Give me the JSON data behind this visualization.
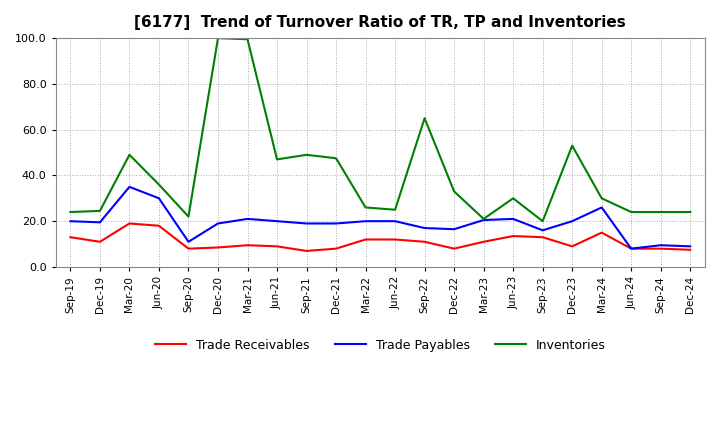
{
  "title": "[6177]  Trend of Turnover Ratio of TR, TP and Inventories",
  "x_labels": [
    "Sep-19",
    "Dec-19",
    "Mar-20",
    "Jun-20",
    "Sep-20",
    "Dec-20",
    "Mar-21",
    "Jun-21",
    "Sep-21",
    "Dec-21",
    "Mar-22",
    "Jun-22",
    "Sep-22",
    "Dec-22",
    "Mar-23",
    "Jun-23",
    "Sep-23",
    "Dec-23",
    "Mar-24",
    "Jun-24",
    "Sep-24",
    "Dec-24"
  ],
  "trade_receivables": [
    13.0,
    11.0,
    19.0,
    18.0,
    8.0,
    8.5,
    9.5,
    9.0,
    7.0,
    8.0,
    12.0,
    12.0,
    11.0,
    8.0,
    11.0,
    13.5,
    13.0,
    9.0,
    15.0,
    8.0,
    8.0,
    7.5
  ],
  "trade_payables": [
    20.0,
    19.5,
    35.0,
    30.0,
    11.0,
    19.0,
    21.0,
    20.0,
    19.0,
    19.0,
    20.0,
    20.0,
    17.0,
    16.5,
    20.5,
    21.0,
    16.0,
    20.0,
    26.0,
    8.0,
    9.5,
    9.0
  ],
  "inventories": [
    24.0,
    24.5,
    49.0,
    36.0,
    22.0,
    100.0,
    99.5,
    47.0,
    49.0,
    47.5,
    26.0,
    25.0,
    65.0,
    33.0,
    21.0,
    30.0,
    20.0,
    53.0,
    30.0,
    24.0,
    24.0,
    24.0
  ],
  "tr_color": "#ff0000",
  "tp_color": "#0000ff",
  "inv_color": "#008000",
  "ylim": [
    0.0,
    100.0
  ],
  "yticks": [
    0.0,
    20.0,
    40.0,
    60.0,
    80.0,
    100.0
  ],
  "background_color": "#ffffff",
  "grid_color": "#aaaaaa",
  "legend_labels": [
    "Trade Receivables",
    "Trade Payables",
    "Inventories"
  ]
}
